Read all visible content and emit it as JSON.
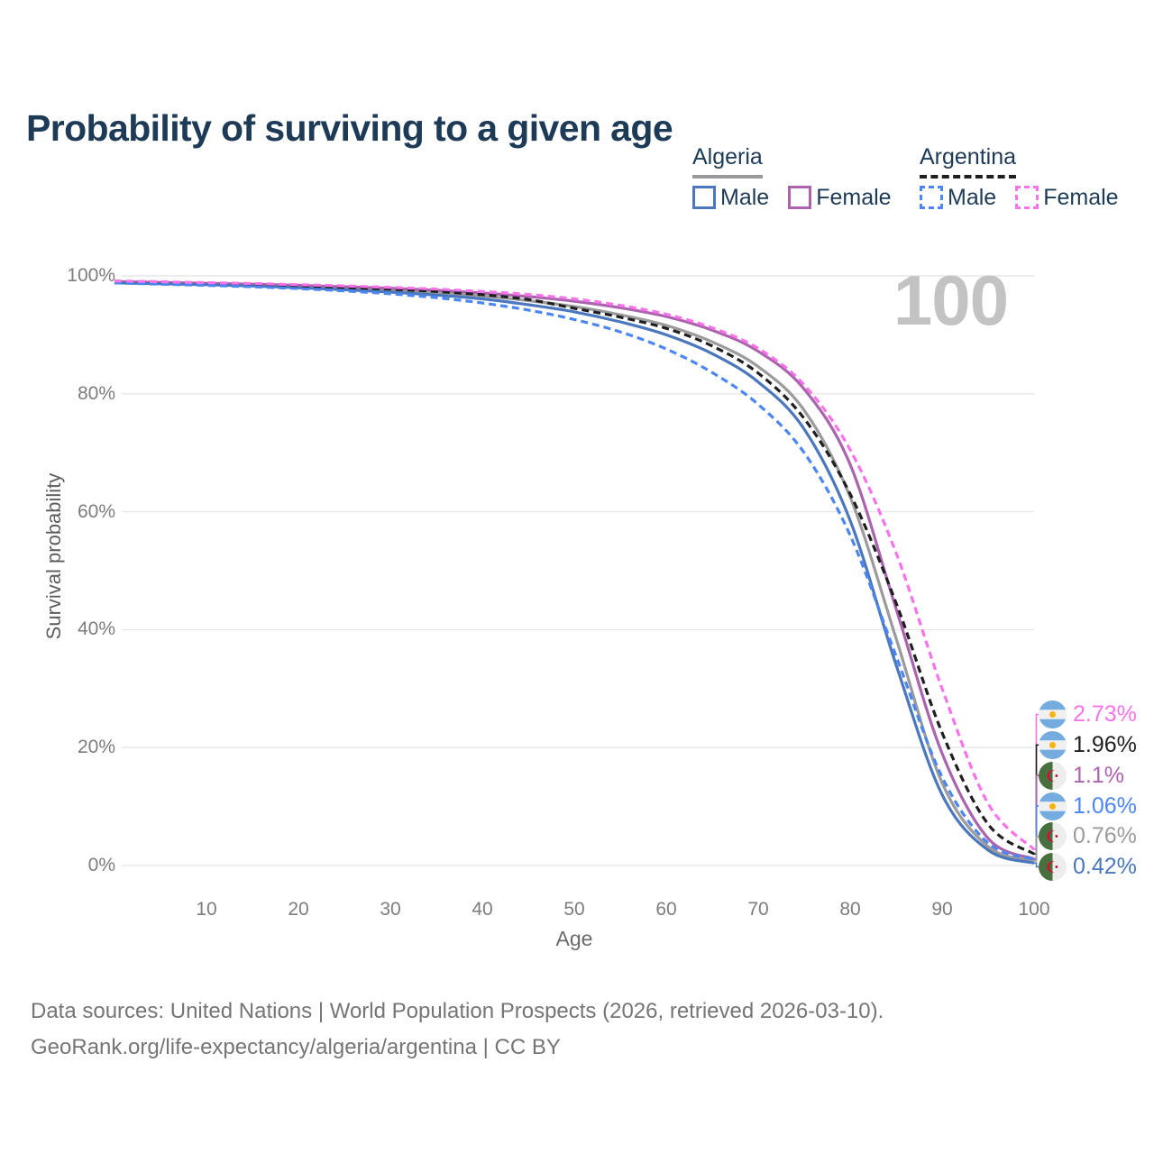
{
  "title": "Probability of surviving to a given age",
  "watermark": "100",
  "legend": {
    "groups": [
      {
        "label": "Algeria",
        "line_style": "solid",
        "underline_color": "#999999",
        "items": [
          {
            "label": "Male",
            "color": "#4a77bd"
          },
          {
            "label": "Female",
            "color": "#ab63ae"
          }
        ]
      },
      {
        "label": "Argentina",
        "line_style": "dashed",
        "underline_color": "#1f1f1f",
        "items": [
          {
            "label": "Male",
            "color": "#4b86f2"
          },
          {
            "label": "Female",
            "color": "#f873ea"
          }
        ]
      }
    ]
  },
  "axes": {
    "y_title": "Survival probability",
    "x_title": "Age",
    "y_ticks": [
      "100%",
      "80%",
      "60%",
      "40%",
      "20%",
      "0%"
    ],
    "x_ticks": [
      "10",
      "20",
      "30",
      "40",
      "50",
      "60",
      "70",
      "80",
      "90",
      "100"
    ]
  },
  "end_labels": [
    {
      "value": "2.73%",
      "series": "Argentina Female",
      "country": "argentina",
      "color": "#f873ea"
    },
    {
      "value": "1.96%",
      "series": "Argentina Both sexes",
      "country": "argentina",
      "color": "#1f1f1f"
    },
    {
      "value": "1.1%",
      "series": "Algeria Female",
      "country": "algeria",
      "color": "#ab63ae"
    },
    {
      "value": "1.06%",
      "series": "Argentina Male",
      "country": "argentina",
      "color": "#4b86f2"
    },
    {
      "value": "0.76%",
      "series": "Algeria Both sexes",
      "country": "algeria",
      "color": "#9b9b9b"
    },
    {
      "value": "0.42%",
      "series": "Algeria Male",
      "country": "algeria",
      "color": "#4a77bd"
    }
  ],
  "footer": {
    "line1": "Data sources: United Nations | World Population Prospects (2026, retrieved 2026-03-10).",
    "line2": "GeoRank.org/life-expectancy/algeria/argentina | CC BY"
  },
  "chart_data": {
    "type": "line",
    "title": "Probability of surviving to a given age",
    "xlabel": "Age",
    "ylabel": "Survival probability",
    "xlim": [
      0,
      100
    ],
    "ylim": [
      0,
      100
    ],
    "grid": "horizontal",
    "grid_values": [
      0,
      20,
      40,
      60,
      80,
      100
    ],
    "legend_position": "top-right",
    "x": [
      0,
      5,
      10,
      15,
      20,
      25,
      30,
      35,
      40,
      45,
      50,
      55,
      60,
      65,
      70,
      75,
      80,
      85,
      90,
      95,
      100
    ],
    "series": [
      {
        "name": "Algeria Both sexes",
        "country": "Algeria",
        "sex": "Both",
        "color": "#9b9b9b",
        "dash": false,
        "end_label": "0.76%",
        "values": [
          98.9,
          98.75,
          98.6,
          98.45,
          98.2,
          97.9,
          97.6,
          97.15,
          96.6,
          95.8,
          94.8,
          93.4,
          91.6,
          88.8,
          84.6,
          77.2,
          62.5,
          38.5,
          14.0,
          3.2,
          0.76
        ]
      },
      {
        "name": "Algeria Female",
        "country": "Algeria",
        "sex": "Female",
        "color": "#ab63ae",
        "dash": false,
        "end_label": "1.1%",
        "values": [
          99.0,
          98.9,
          98.75,
          98.6,
          98.4,
          98.15,
          97.9,
          97.55,
          97.1,
          96.5,
          95.7,
          94.6,
          93.1,
          90.8,
          87.2,
          80.8,
          68.0,
          43.5,
          19.0,
          4.6,
          1.1
        ]
      },
      {
        "name": "Algeria Male",
        "country": "Algeria",
        "sex": "Male",
        "color": "#4a77bd",
        "dash": false,
        "end_label": "0.42%",
        "values": [
          98.8,
          98.65,
          98.5,
          98.3,
          98.0,
          97.65,
          97.25,
          96.75,
          96.1,
          95.1,
          93.9,
          92.2,
          90.0,
          86.8,
          82.0,
          74.0,
          58.5,
          34.0,
          12.0,
          2.6,
          0.42
        ]
      },
      {
        "name": "Argentina Both sexes",
        "country": "Argentina",
        "sex": "Both",
        "color": "#1f1f1f",
        "dash": true,
        "end_label": "1.96%",
        "values": [
          99.0,
          98.85,
          98.7,
          98.5,
          98.3,
          98.05,
          97.75,
          97.35,
          96.8,
          96.0,
          94.5,
          93.0,
          91.1,
          88.1,
          83.5,
          75.8,
          63.0,
          44.5,
          22.5,
          7.0,
          1.96
        ]
      },
      {
        "name": "Argentina Male",
        "country": "Argentina",
        "sex": "Male",
        "color": "#4b86f2",
        "dash": true,
        "end_label": "1.06%",
        "values": [
          98.8,
          98.6,
          98.4,
          98.15,
          97.85,
          97.45,
          96.95,
          96.3,
          95.4,
          94.2,
          92.6,
          90.5,
          87.6,
          83.6,
          78.2,
          70.0,
          56.0,
          35.5,
          15.0,
          3.8,
          1.06
        ]
      },
      {
        "name": "Argentina Female",
        "country": "Argentina",
        "sex": "Female",
        "color": "#f873ea",
        "dash": true,
        "end_label": "2.73%",
        "values": [
          99.15,
          99.0,
          98.85,
          98.7,
          98.5,
          98.3,
          98.05,
          97.75,
          97.35,
          96.85,
          96.1,
          95.0,
          93.5,
          91.2,
          87.7,
          81.5,
          70.5,
          53.0,
          30.0,
          10.5,
          2.73
        ]
      }
    ]
  }
}
